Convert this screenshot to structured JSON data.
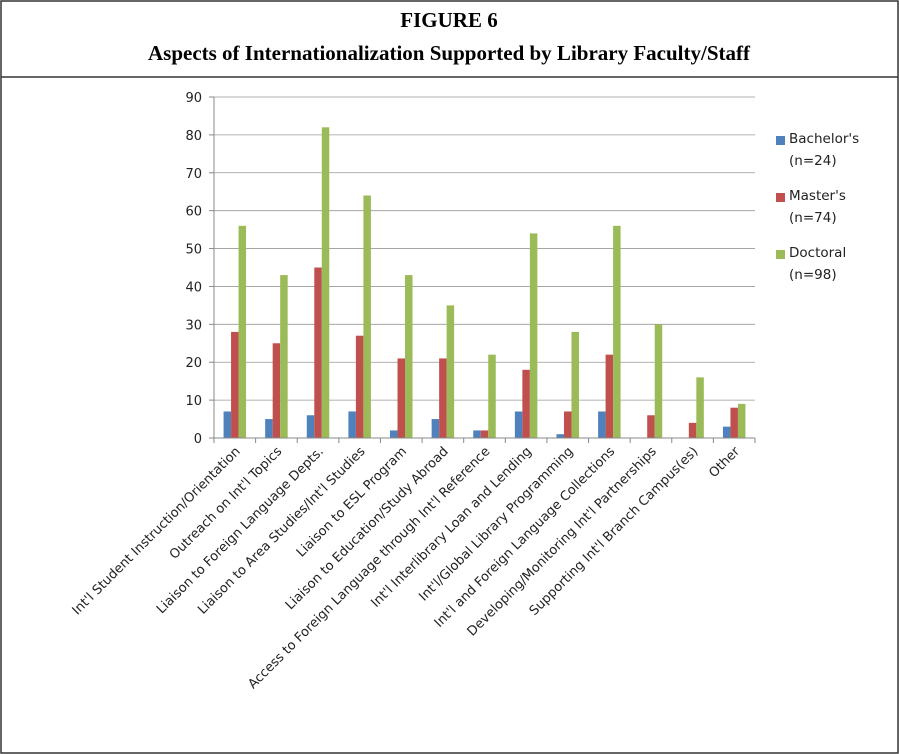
{
  "chart_data": {
    "type": "bar",
    "title": "FIGURE 6",
    "subtitle": "Aspects of Internationalization Supported by Library Faculty/Staff",
    "categories": [
      "Int'l Student Instruction/Orientation",
      "Outreach on Int'l Topics",
      "Liaison to Foreign Language Depts.",
      "Liaison to Area Studies/Int'l Studies",
      "Liaison to ESL Program",
      "Liaison to Education/Study Abroad",
      "Access to Foreign Language through Int'l Reference",
      "Int'l Interlibrary Loan and Lending",
      "Int'l/Global Library Programming",
      "Int'l and Foreign Language Collections",
      "Developing/Monitoring Int'l Partnerships",
      "Supporting Int'l Branch Campus(es)",
      "Other"
    ],
    "series": [
      {
        "name": "Bachelor's (n=24)",
        "color": "#4f81bd",
        "values": [
          7,
          5,
          6,
          7,
          2,
          5,
          2,
          7,
          1,
          7,
          0,
          0,
          3
        ]
      },
      {
        "name": "Master's (n=74)",
        "color": "#c0504d",
        "values": [
          28,
          25,
          45,
          27,
          21,
          21,
          2,
          18,
          7,
          22,
          6,
          4,
          8
        ]
      },
      {
        "name": "Doctoral (n=98)",
        "color": "#9bbb59",
        "values": [
          56,
          43,
          82,
          64,
          43,
          35,
          22,
          54,
          28,
          56,
          30,
          16,
          9
        ]
      }
    ],
    "ylim": [
      0,
      90
    ],
    "yticks": [
      0,
      10,
      20,
      30,
      40,
      50,
      60,
      70,
      80,
      90
    ],
    "grid": true,
    "legend": "right"
  }
}
